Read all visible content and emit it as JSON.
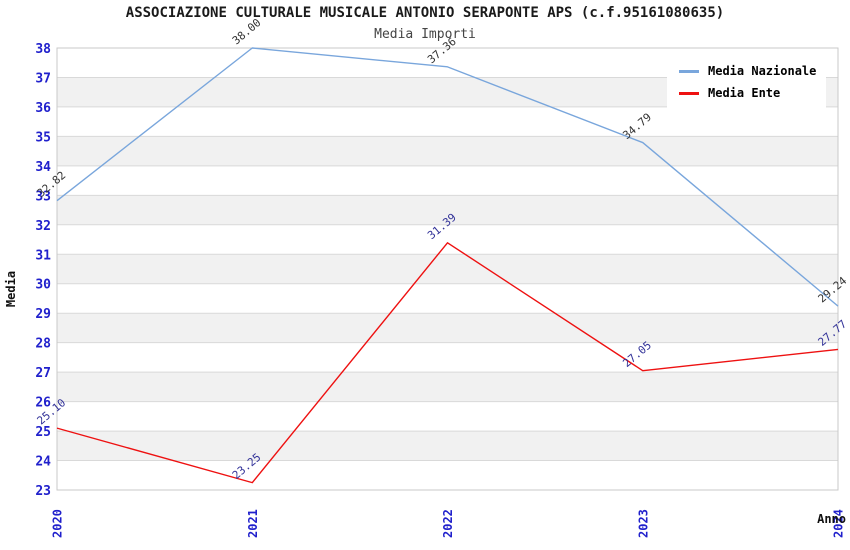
{
  "header": {
    "title": "ASSOCIAZIONE CULTURALE MUSICALE ANTONIO SERAPONTE APS (c.f.95161080635)",
    "subtitle": "Media Importi"
  },
  "chart_data": {
    "type": "line",
    "x": [
      "2020",
      "2021",
      "2022",
      "2023",
      "2024"
    ],
    "xlabel": "Anno",
    "ylabel": "Media",
    "ylim": [
      23,
      38
    ],
    "ytick_step": 1,
    "grid": "horizontal-bands",
    "legend_position": "top-right",
    "series": [
      {
        "name": "Media Nazionale",
        "color": "#79a6dc",
        "label_color": "#333333",
        "values": [
          32.82,
          38.0,
          37.36,
          34.79,
          29.24
        ],
        "labels": [
          "32.82",
          "38.00",
          "37.36",
          "34.79",
          "29.24"
        ]
      },
      {
        "name": "Media Ente",
        "color": "#ee1111",
        "label_color": "#333399",
        "values": [
          25.1,
          23.25,
          31.39,
          27.05,
          27.77
        ],
        "labels": [
          "25.10",
          "23.25",
          "31.39",
          "27.05",
          "27.77"
        ]
      }
    ]
  },
  "style": {
    "tick_color": "#2020cc",
    "band_gray": "#f1f1f1",
    "band_white": "#ffffff",
    "gridline_color": "#d9d9d9",
    "border_color": "#c9c9c9"
  }
}
